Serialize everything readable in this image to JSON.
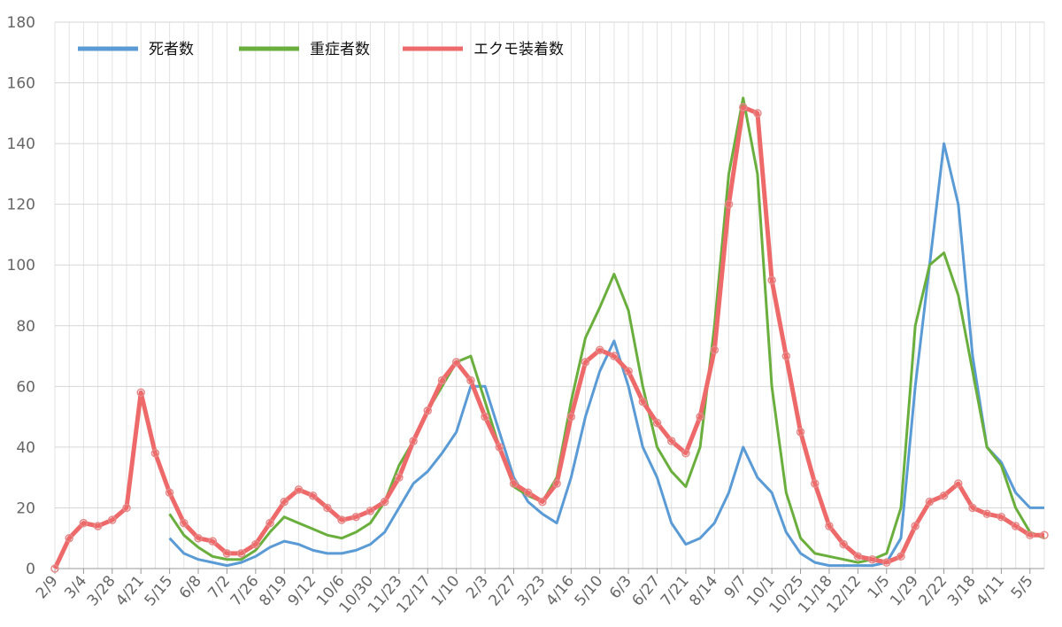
{
  "chart_data": {
    "type": "line",
    "categories": [
      "2/9",
      null,
      "3/4",
      null,
      "3/28",
      null,
      "4/21",
      null,
      "5/15",
      null,
      "6/8",
      null,
      "7/2",
      null,
      "7/26",
      null,
      "8/19",
      null,
      "9/12",
      null,
      "10/6",
      null,
      "10/30",
      null,
      "11/23",
      null,
      "12/17",
      null,
      "1/10",
      null,
      "2/3",
      null,
      "2/27",
      null,
      "3/23",
      null,
      "4/16",
      null,
      "5/10",
      null,
      "6/3",
      null,
      "6/27",
      null,
      "7/21",
      null,
      "8/14",
      null,
      "9/7",
      null,
      "10/1",
      null,
      "10/25",
      null,
      "11/18",
      null,
      "12/12",
      null,
      "1/5",
      null,
      "1/29",
      null,
      "2/22",
      null,
      "3/18",
      null,
      "4/11",
      null,
      "5/5",
      null
    ],
    "series": [
      {
        "name": "死者数",
        "color": "#5b9bd5",
        "values": [
          null,
          null,
          null,
          null,
          null,
          null,
          null,
          null,
          10,
          5,
          3,
          2,
          1,
          2,
          4,
          7,
          9,
          8,
          6,
          5,
          5,
          6,
          8,
          12,
          20,
          28,
          32,
          38,
          45,
          60,
          60,
          45,
          30,
          22,
          18,
          15,
          30,
          50,
          65,
          75,
          60,
          40,
          30,
          15,
          8,
          10,
          15,
          25,
          40,
          30,
          25,
          12,
          5,
          2,
          1,
          1,
          1,
          1,
          2,
          10,
          60,
          100,
          140,
          120,
          70,
          40,
          35,
          25,
          20,
          20
        ]
      },
      {
        "name": "重症者数",
        "color": "#6aaf3d",
        "values": [
          null,
          null,
          null,
          null,
          null,
          null,
          null,
          null,
          18,
          11,
          7,
          4,
          3,
          3,
          6,
          12,
          17,
          15,
          13,
          11,
          10,
          12,
          15,
          22,
          34,
          42,
          52,
          60,
          68,
          70,
          55,
          40,
          27,
          24,
          22,
          30,
          55,
          76,
          86,
          97,
          85,
          60,
          40,
          32,
          27,
          40,
          80,
          130,
          155,
          130,
          60,
          25,
          10,
          5,
          4,
          3,
          2,
          3,
          5,
          20,
          80,
          100,
          104,
          90,
          65,
          40,
          34,
          20,
          12,
          10
        ]
      },
      {
        "name": "エクモ装着数",
        "color": "#ee6a6a",
        "values": [
          0,
          10,
          15,
          14,
          16,
          20,
          58,
          38,
          25,
          15,
          10,
          9,
          5,
          5,
          8,
          15,
          22,
          26,
          24,
          20,
          16,
          17,
          19,
          22,
          30,
          42,
          52,
          62,
          68,
          62,
          50,
          40,
          28,
          25,
          22,
          28,
          50,
          68,
          72,
          70,
          65,
          55,
          48,
          42,
          38,
          50,
          72,
          120,
          152,
          150,
          95,
          70,
          45,
          28,
          14,
          8,
          4,
          3,
          2,
          4,
          14,
          22,
          24,
          28,
          20,
          18,
          17,
          14,
          11,
          11
        ]
      }
    ],
    "ylim": [
      0,
      180
    ],
    "yticks": [
      0,
      20,
      40,
      60,
      80,
      100,
      120,
      140,
      160,
      180
    ],
    "grid": true,
    "legend": "top-left"
  }
}
